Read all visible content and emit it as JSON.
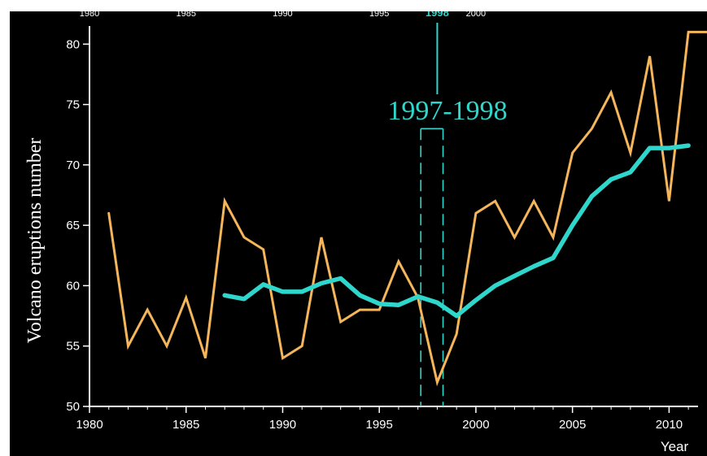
{
  "chart_data": {
    "type": "line",
    "xlabel": "Year",
    "ylabel": "Volcano eruptions number",
    "xlim": [
      1980,
      2011.5
    ],
    "ylim": [
      50,
      81.5
    ],
    "x_ticks": [
      1980,
      1985,
      1990,
      1995,
      2000,
      2005,
      2010
    ],
    "y_ticks": [
      50,
      55,
      60,
      65,
      70,
      75,
      80
    ],
    "top_ticks": [
      "1980",
      "1985",
      "1990",
      "1995",
      "1998",
      "2000"
    ],
    "grid": false,
    "series": [
      {
        "color": "#f5b55a",
        "x": [
          1981,
          1982,
          1983,
          1984,
          1985,
          1986,
          1987,
          1988,
          1989,
          1990,
          1991,
          1992,
          1993,
          1994,
          1995,
          1996,
          1997,
          1998,
          1999,
          2000,
          2001,
          2002,
          2003,
          2004,
          2005,
          2006,
          2007,
          2008,
          2009,
          2010,
          2011,
          2012
        ],
        "values": [
          66,
          55,
          58,
          55,
          59,
          54,
          67,
          64,
          63,
          54,
          55,
          64,
          57,
          58,
          58,
          62,
          59,
          52,
          56,
          66,
          67,
          64,
          67,
          64,
          71,
          73,
          76,
          71,
          79,
          67,
          81,
          81
        ]
      },
      {
        "color": "#2fd6cc",
        "x": [
          1987,
          1988,
          1989,
          1990,
          1991,
          1992,
          1993,
          1994,
          1995,
          1996,
          1997,
          1998,
          1999,
          2000,
          2001,
          2002,
          2003,
          2004,
          2005,
          2006,
          2007,
          2008,
          2009,
          2010,
          2011
        ],
        "values": [
          59.2,
          58.9,
          60.1,
          59.5,
          59.5,
          60.2,
          60.6,
          59.2,
          58.5,
          58.4,
          59.1,
          58.6,
          57.5,
          58.8,
          60.0,
          60.8,
          61.6,
          62.3,
          65.0,
          67.4,
          68.8,
          69.4,
          71.4,
          71.4,
          71.6
        ]
      }
    ],
    "annotations": [
      {
        "text": "1997-1998",
        "color": "#2fd6cc",
        "highlight_years": [
          1997,
          1998
        ],
        "box_y_range": [
          50,
          73
        ]
      }
    ]
  }
}
